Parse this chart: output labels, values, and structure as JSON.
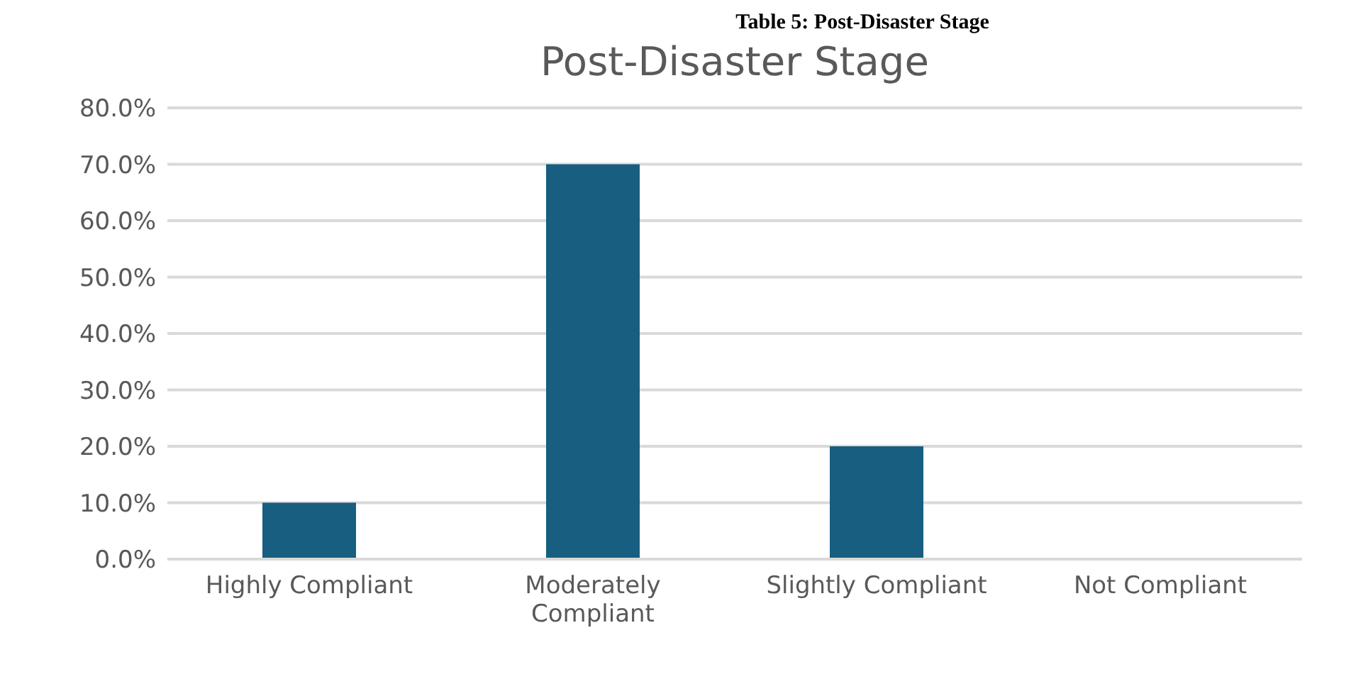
{
  "chart_data": {
    "type": "bar",
    "title": "Post-Disaster Stage",
    "annotations": [
      "Table 5: Post-Disaster Stage"
    ],
    "categories": [
      "Highly Compliant",
      "Moderately Compliant",
      "Slightly Compliant",
      "Not Compliant"
    ],
    "values": [
      10,
      70,
      20,
      0
    ],
    "color": "#175e80",
    "ylim": [
      0,
      80
    ],
    "yticks": [
      {
        "value": 0,
        "label": "0.0%"
      },
      {
        "value": 10,
        "label": "10.0%"
      },
      {
        "value": 20,
        "label": "20.0%"
      },
      {
        "value": 30,
        "label": "30.0%"
      },
      {
        "value": 40,
        "label": "40.0%"
      },
      {
        "value": 50,
        "label": "50.0%"
      },
      {
        "value": 60,
        "label": "60.0%"
      },
      {
        "value": 70,
        "label": "70.0%"
      },
      {
        "value": 80,
        "label": "80.0%"
      }
    ],
    "grid": "y",
    "legend": false
  }
}
